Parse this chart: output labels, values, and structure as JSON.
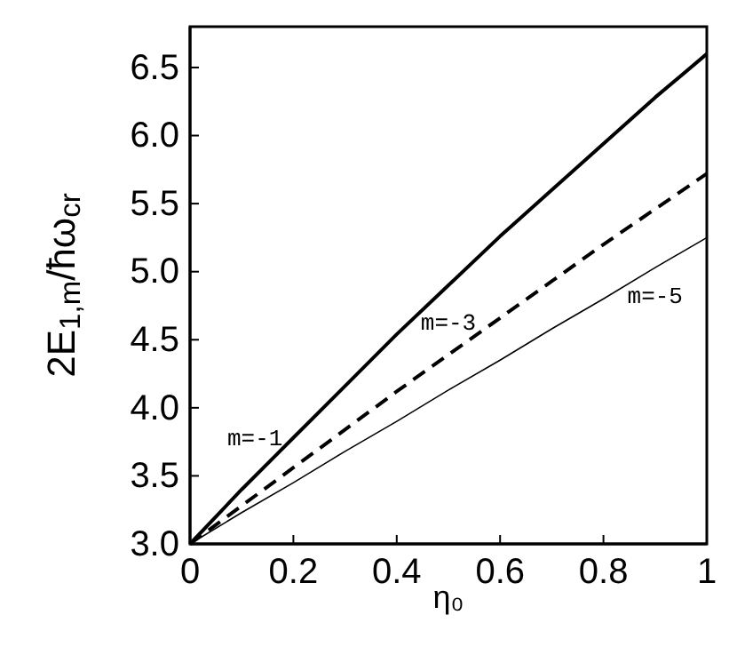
{
  "chart_data": {
    "type": "line",
    "xlabel": "η₀",
    "ylabel": "2E$_{1,m}$/ħω$_{cr}$",
    "x": [
      0,
      0.1,
      0.2,
      0.3,
      0.4,
      0.5,
      0.6,
      0.7,
      0.8,
      0.9,
      1
    ],
    "series": [
      {
        "name": "m=-1",
        "color": "#000000",
        "line_style": "solid",
        "values": [
          3.0,
          3.4,
          3.78,
          4.16,
          4.54,
          4.9,
          5.26,
          5.6,
          5.94,
          6.28,
          6.6
        ]
      },
      {
        "name": "m=-3",
        "color": "#000000",
        "line_style": "dashed",
        "values": [
          3.0,
          3.28,
          3.56,
          3.84,
          4.12,
          4.39,
          4.66,
          4.93,
          5.2,
          5.46,
          5.72
        ]
      },
      {
        "name": "m=-5",
        "color": "#000000",
        "line_style": "solid",
        "values": [
          3.0,
          3.23,
          3.45,
          3.68,
          3.9,
          4.13,
          4.35,
          4.58,
          4.8,
          5.03,
          5.25
        ]
      }
    ],
    "xlim": [
      0,
      1
    ],
    "ylim": [
      3,
      6.8
    ],
    "xticks": [
      0,
      0.2,
      0.4,
      0.6,
      0.8,
      1
    ],
    "yticks": [
      {
        "value": 3,
        "label": "3.0"
      },
      3.5,
      {
        "value": 4,
        "label": "4.0"
      },
      4.5,
      {
        "value": 5,
        "label": "5.0"
      },
      5.5,
      {
        "value": 6,
        "label": "6.0"
      },
      6.5
    ],
    "grid": false,
    "marker": "none"
  }
}
